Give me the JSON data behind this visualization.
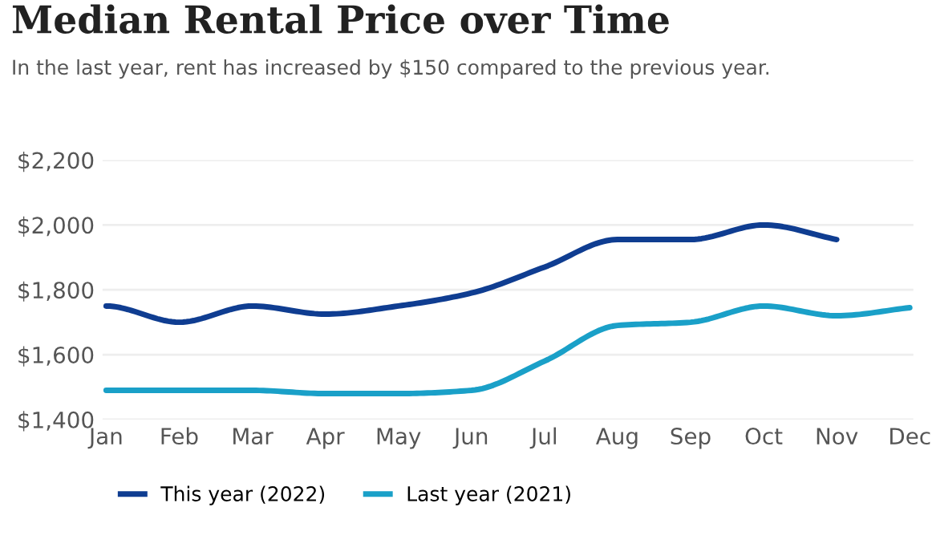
{
  "chart_data": {
    "type": "line",
    "title": "Median Rental Price over Time",
    "subtitle": "In the last year, rent has increased by $150 compared to the previous year.",
    "categories": [
      "Jan",
      "Feb",
      "Mar",
      "Apr",
      "May",
      "Jun",
      "Jul",
      "Aug",
      "Sep",
      "Oct",
      "Nov",
      "Dec"
    ],
    "series": [
      {
        "name": "This year (2022)",
        "color": "#0f3d91",
        "values": [
          1750,
          1700,
          1750,
          1725,
          1750,
          1790,
          1870,
          1955,
          1955,
          2000,
          1955,
          null
        ]
      },
      {
        "name": "Last year (2021)",
        "color": "#1aa0c8",
        "values": [
          1490,
          1490,
          1490,
          1480,
          1480,
          1490,
          1580,
          1690,
          1700,
          1750,
          1720,
          1745
        ]
      }
    ],
    "ylim": [
      1400,
      2200
    ],
    "yticks": [
      {
        "value": 1400,
        "label": "$1,400"
      },
      {
        "value": 1600,
        "label": "$1,600"
      },
      {
        "value": 1800,
        "label": "$1,800"
      },
      {
        "value": 2000,
        "label": "$2,000"
      },
      {
        "value": 2200,
        "label": "$2,200"
      }
    ],
    "grid": "y",
    "legend": "bottom",
    "marker": "none",
    "line_style": "solid"
  }
}
